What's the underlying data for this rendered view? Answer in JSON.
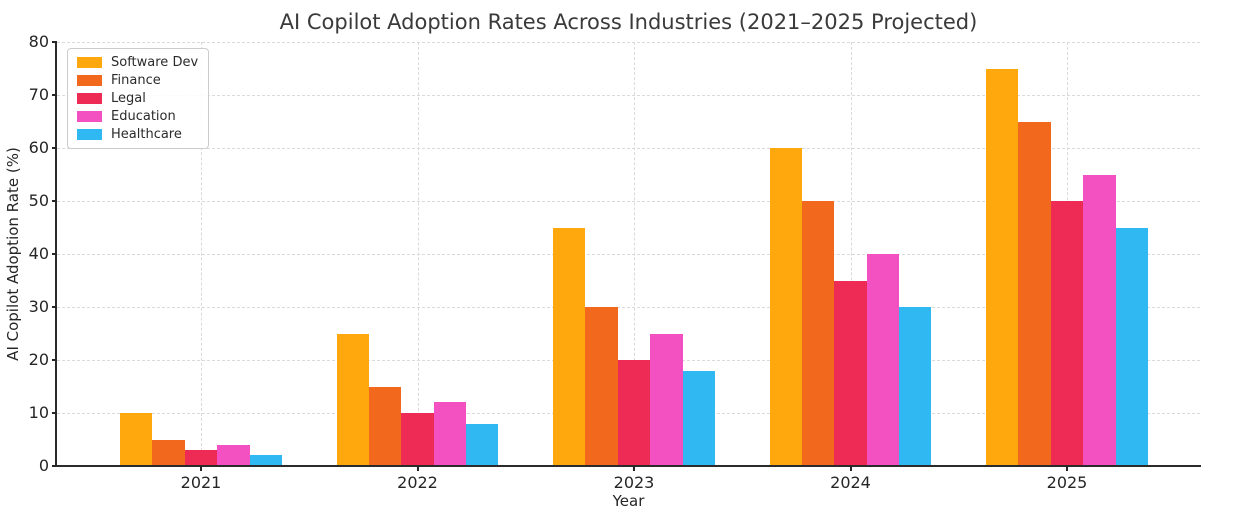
{
  "chart_data": {
    "type": "bar",
    "title": "AI Copilot Adoption Rates Across Industries (2021–2025 Projected)",
    "xlabel": "Year",
    "ylabel": "AI Copilot Adoption Rate (%)",
    "categories": [
      "2021",
      "2022",
      "2023",
      "2024",
      "2025"
    ],
    "series": [
      {
        "name": "Software Dev",
        "color": "#FFA80E",
        "values": [
          10,
          25,
          45,
          60,
          75
        ]
      },
      {
        "name": "Finance",
        "color": "#F2691E",
        "values": [
          5,
          15,
          30,
          50,
          65
        ]
      },
      {
        "name": "Legal",
        "color": "#EE2B55",
        "values": [
          3,
          10,
          20,
          35,
          50
        ]
      },
      {
        "name": "Education",
        "color": "#F351C1",
        "values": [
          4,
          12,
          25,
          40,
          55
        ]
      },
      {
        "name": "Healthcare",
        "color": "#2FB8F2",
        "values": [
          2,
          8,
          18,
          30,
          45
        ]
      }
    ],
    "ylim": [
      0,
      80
    ],
    "yticks": [
      0,
      10,
      20,
      30,
      40,
      50,
      60,
      70,
      80
    ],
    "grid": true,
    "grid_style": "dashed",
    "legend_position": "upper left",
    "axis_color": "#2b2b2b",
    "grid_color": "#dadada"
  }
}
